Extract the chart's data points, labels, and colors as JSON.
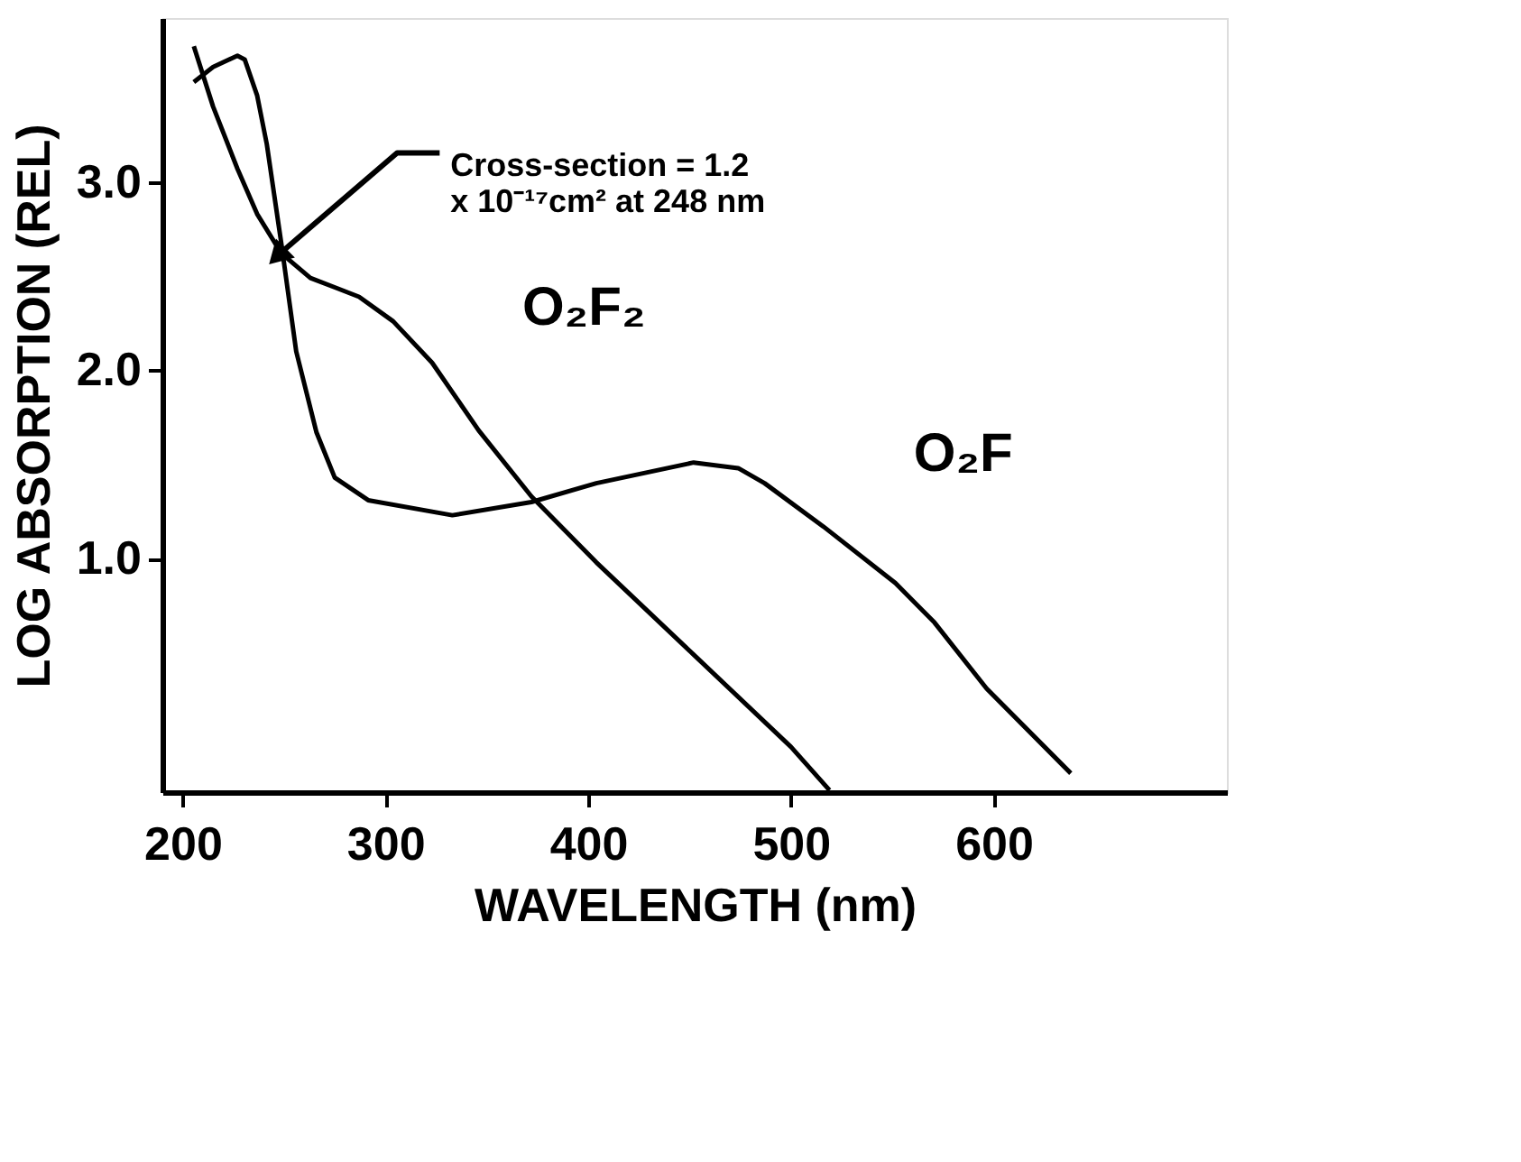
{
  "chart_data": {
    "type": "line",
    "xlabel": "WAVELENGTH (nm)",
    "ylabel": "LOG ABSORPTION (REL)",
    "xlim": [
      190,
      715
    ],
    "ylim": [
      -0.24,
      3.87
    ],
    "xticks": [
      200,
      300,
      400,
      500,
      600
    ],
    "yticks": [
      {
        "value": 1,
        "label": "1.0"
      },
      {
        "value": 2,
        "label": "2.0"
      },
      {
        "value": 3,
        "label": "3.0"
      }
    ],
    "grid": false,
    "legend": false,
    "marker": "none",
    "line_style": "solid",
    "series": [
      {
        "name": "O₂F₂",
        "color": "#000000",
        "x": [
          205.5,
          215,
          227,
          236.7,
          248.7,
          263,
          275,
          287,
          303.8,
          323,
          346,
          372,
          404,
          452,
          500,
          519
        ],
        "values": [
          3.72,
          3.4,
          3.07,
          2.83,
          2.62,
          2.49,
          2.44,
          2.39,
          2.26,
          2.04,
          1.68,
          1.33,
          0.98,
          0.49,
          0.0,
          -0.23
        ]
      },
      {
        "name": "O₂F",
        "color": "#000000",
        "x": [
          205.5,
          215,
          227,
          230.6,
          236.7,
          241.5,
          248.7,
          256,
          266,
          275,
          291.5,
          333,
          372,
          404,
          452,
          474,
          487,
          516,
          551.5,
          570.8,
          596.5,
          638
        ],
        "values": [
          3.53,
          3.61,
          3.67,
          3.65,
          3.46,
          3.2,
          2.67,
          2.1,
          1.67,
          1.43,
          1.31,
          1.23,
          1.3,
          1.4,
          1.51,
          1.48,
          1.4,
          1.17,
          0.87,
          0.66,
          0.31,
          -0.14
        ]
      }
    ],
    "annotations": [
      {
        "text": "Cross-section = 1.2 x 10⁻¹⁷cm² at 248 nm",
        "x": 248,
        "y": 2.62
      }
    ]
  }
}
